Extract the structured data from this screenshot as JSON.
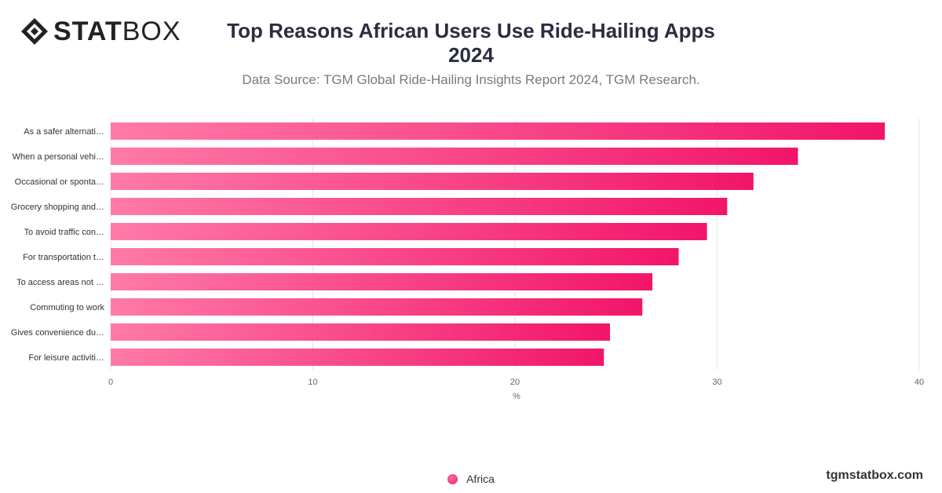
{
  "brand": {
    "logo_bold": "STAT",
    "logo_light": "BOX",
    "watermark": "tgmstatbox.com"
  },
  "chart_data": {
    "type": "bar",
    "orientation": "horizontal",
    "title_line1": "Top Reasons African Users Use Ride-Hailing Apps",
    "title_line2": "2024",
    "subtitle": "Data Source: TGM Global Ride-Hailing Insights Report 2024, TGM Research.",
    "xlabel": "%",
    "xlim": [
      0,
      40
    ],
    "xticks": [
      0,
      10,
      20,
      30,
      40
    ],
    "grid": true,
    "legend_position": "bottom-center",
    "categories": [
      "As a safer alternati…",
      "When a personal vehi…",
      "Occasional or sponta…",
      "Grocery shopping and…",
      "To avoid traffic con…",
      "For transportation t…",
      "To access areas not …",
      "Commuting to work",
      "Gives convenience du…",
      "For leisure activiti…"
    ],
    "series": [
      {
        "name": "Africa",
        "values": [
          38.3,
          34.0,
          31.8,
          30.5,
          29.5,
          28.1,
          26.8,
          26.3,
          24.7,
          24.4
        ],
        "color_start": "#ff7aa8",
        "color_end": "#f2156a"
      }
    ]
  }
}
